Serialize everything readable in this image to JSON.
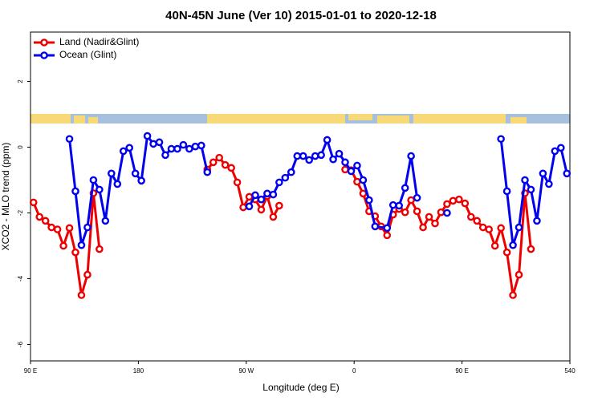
{
  "chart_data": {
    "type": "line",
    "title": "40N-45N June (Ver 10)   2015-01-01 to 2020-12-18",
    "x_label": "Longitude (deg E)",
    "y_label": "XCO2 - MLO trend (ppm)",
    "xlim": [
      90,
      540
    ],
    "ylim": [
      -6.5,
      3.5
    ],
    "xticks": [
      {
        "value": 90,
        "label": "90 E"
      },
      180,
      {
        "value": 270,
        "label": "90 W"
      },
      {
        "value": 360,
        "label": "0"
      },
      {
        "value": 450,
        "label": "90 E"
      },
      540
    ],
    "yticks": [
      -6,
      -4,
      -2,
      0,
      2
    ],
    "legend": "top-left",
    "series": [
      {
        "name": "Land (Nadir&Glint)",
        "color": "#ee0000",
        "x": [
          92.5,
          97.5,
          102.5,
          107.5,
          112.5,
          117.5,
          122.5,
          127.5,
          132.5,
          137.5,
          142.5,
          147.5,
          190,
          237.5,
          242.5,
          247.5,
          252.5,
          257.5,
          262.5,
          267.5,
          272.5,
          277.5,
          282.5,
          287.5,
          292.5,
          297.5,
          320,
          352.5,
          357.5,
          362.5,
          367.5,
          372.5,
          377.5,
          382.5,
          387.5,
          392.5,
          397.5,
          402.5,
          407.5,
          412.5,
          417.5,
          422.5,
          427.5,
          432.5,
          437.5,
          442.5,
          447.5,
          452.5,
          457.5,
          462.5,
          467.5,
          472.5,
          477.5,
          482.5,
          487.5,
          492.5,
          497.5,
          502.5,
          507.5
        ],
        "values": [
          -1.68,
          -2.12,
          -2.24,
          -2.44,
          -2.5,
          -3.0,
          -2.46,
          -3.2,
          -4.5,
          -3.88,
          -1.4,
          -3.1,
          null,
          -0.68,
          -0.46,
          -0.32,
          -0.54,
          -0.63,
          -1.07,
          -1.83,
          -1.51,
          -1.59,
          -1.9,
          -1.49,
          -2.12,
          -1.78,
          null,
          -0.68,
          -0.7,
          -1.05,
          -1.41,
          -1.95,
          -2.1,
          -2.41,
          -2.68,
          -2.05,
          -1.88,
          -1.98,
          -1.61,
          -1.95,
          -2.44,
          -2.12,
          -2.32,
          -1.98,
          -1.73,
          -1.63,
          -1.59,
          -1.71,
          -2.12,
          -2.24,
          -2.44,
          -2.5,
          -3.0,
          -2.46,
          -3.2,
          -4.5,
          -3.88,
          -1.4,
          -3.1
        ]
      },
      {
        "name": "Ocean (Glint)",
        "color": "#0000ee",
        "x": [
          122.5,
          127.5,
          132.5,
          137.5,
          142.5,
          147.5,
          152.5,
          157.5,
          162.5,
          167.5,
          172.5,
          177.5,
          182.5,
          187.5,
          192.5,
          197.5,
          202.5,
          207.5,
          212.5,
          217.5,
          222.5,
          227.5,
          232.5,
          237.5,
          255,
          272.5,
          277.5,
          282.5,
          287.5,
          292.5,
          297.5,
          302.5,
          307.5,
          312.5,
          317.5,
          322.5,
          327.5,
          332.5,
          337.5,
          342.5,
          347.5,
          352.5,
          357.5,
          362.5,
          367.5,
          372.5,
          377.5,
          387.5,
          392.5,
          397.5,
          402.5,
          407.5,
          412.5,
          415,
          437.5,
          460,
          482.5,
          487.5,
          492.5,
          497.5,
          502.5,
          507.5,
          512.5,
          517.5,
          522.5,
          527.5,
          532.5,
          537.5
        ],
        "values": [
          0.25,
          -1.34,
          -2.98,
          -2.44,
          -1.0,
          -1.29,
          -2.24,
          -0.8,
          -1.12,
          -0.12,
          -0.02,
          -0.8,
          -1.02,
          0.34,
          0.1,
          0.15,
          -0.24,
          -0.05,
          -0.05,
          0.07,
          -0.05,
          0.02,
          0.05,
          -0.76,
          null,
          -1.8,
          -1.46,
          -1.59,
          -1.41,
          -1.44,
          -1.07,
          -0.93,
          -0.76,
          -0.27,
          -0.27,
          -0.39,
          -0.27,
          -0.24,
          0.22,
          -0.37,
          -0.2,
          -0.46,
          -0.73,
          -0.56,
          -1.0,
          -1.61,
          -2.41,
          -2.46,
          -1.76,
          -1.78,
          -1.24,
          -0.27,
          -1.54,
          null,
          -2.0,
          null,
          0.25,
          -1.34,
          -2.98,
          -2.44,
          -1.0,
          -1.29,
          -2.24,
          -0.8,
          -1.12,
          -0.12,
          -0.02,
          -0.8
        ]
      }
    ]
  }
}
